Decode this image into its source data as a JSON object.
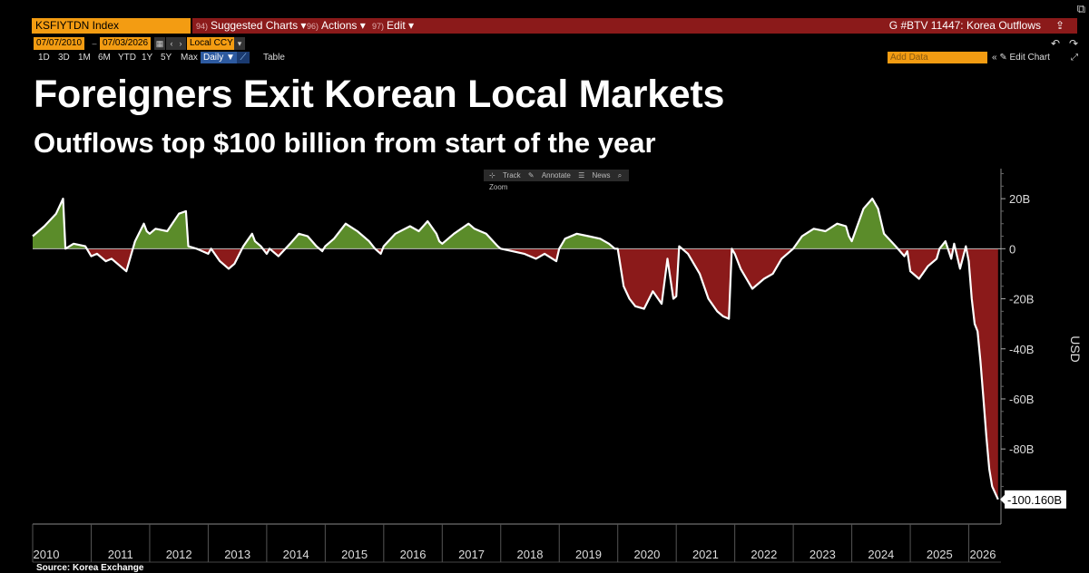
{
  "toolbar_top": {
    "ticker": "KSFIYTDN Index",
    "menu": [
      {
        "num": "94)",
        "label": "Suggested Charts ▾"
      },
      {
        "num": "96)",
        "label": "Actions ▾"
      },
      {
        "num": "97)",
        "label": "Edit ▾"
      }
    ],
    "window_title": "G #BTV 11447: Korea Outflows"
  },
  "date_range": {
    "start": "07/07/2010",
    "end": "07/03/2026",
    "currency": "Local CCY"
  },
  "periods": [
    "1D",
    "3D",
    "1M",
    "6M",
    "YTD",
    "1Y",
    "5Y",
    "Max"
  ],
  "frequency": "Daily ▼",
  "table_label": "Table",
  "add_data_placeholder": "Add Data",
  "edit_chart_label": "« ✎ Edit Chart",
  "chart_tools": [
    "Track",
    "Annotate",
    "News",
    "Zoom"
  ],
  "headline": "Foreigners Exit Korean Local Markets",
  "subheadline": "Outflows top $100 billion from start of the year",
  "source": "Source: Korea Exchange",
  "colors": {
    "background": "#000000",
    "positive_fill": "#5b8c2a",
    "negative_fill": "#8b1a1a",
    "line": "#ffffff",
    "accent": "#f39c12"
  },
  "chart_data": {
    "type": "area",
    "title": "Foreigners Exit Korean Local Markets",
    "subtitle": "Outflows top $100 billion from start of the year",
    "ylabel": "USD",
    "ylim": [
      -110,
      32
    ],
    "yticks": [
      20,
      0,
      -20,
      -40,
      -60,
      -80
    ],
    "ytick_labels": [
      "20B",
      "0",
      "-20B",
      "-40B",
      "-60B",
      "-80B"
    ],
    "x_tick_labels": [
      "2010",
      "2011",
      "2012",
      "2013",
      "2014",
      "2015",
      "2016",
      "2017",
      "2018",
      "2019",
      "2020",
      "2021",
      "2022",
      "2023",
      "2024",
      "2025",
      "2026"
    ],
    "last_value_label": "-100.160B",
    "grid": false,
    "series": [
      {
        "values_unit": "USD billions, year-to-date cumulative foreign net flow",
        "x": [
          2010.0,
          2010.2,
          2010.4,
          2010.52,
          2010.56,
          2010.7,
          2010.9,
          2011.0,
          2011.1,
          2011.25,
          2011.35,
          2011.5,
          2011.6,
          2011.75,
          2011.9,
          2011.95,
          2012.0,
          2012.1,
          2012.3,
          2012.5,
          2012.62,
          2012.66,
          2012.8,
          2013.0,
          2013.05,
          2013.2,
          2013.35,
          2013.45,
          2013.6,
          2013.75,
          2013.8,
          2013.9,
          2014.0,
          2014.05,
          2014.2,
          2014.4,
          2014.55,
          2014.7,
          2014.85,
          2014.95,
          2015.0,
          2015.15,
          2015.35,
          2015.55,
          2015.75,
          2015.85,
          2015.95,
          2016.0,
          2016.2,
          2016.45,
          2016.6,
          2016.75,
          2016.9,
          2016.95,
          2017.0,
          2017.2,
          2017.45,
          2017.55,
          2017.75,
          2017.95,
          2018.0,
          2018.2,
          2018.4,
          2018.6,
          2018.75,
          2018.95,
          2019.0,
          2019.1,
          2019.3,
          2019.5,
          2019.7,
          2019.85,
          2019.95,
          2020.0,
          2020.1,
          2020.2,
          2020.3,
          2020.45,
          2020.6,
          2020.75,
          2020.85,
          2020.95,
          2021.0,
          2021.05,
          2021.2,
          2021.4,
          2021.55,
          2021.7,
          2021.8,
          2021.9,
          2021.95,
          2022.0,
          2022.1,
          2022.3,
          2022.5,
          2022.65,
          2022.8,
          2022.95,
          2023.0,
          2023.15,
          2023.35,
          2023.55,
          2023.75,
          2023.9,
          2023.95,
          2024.0,
          2024.2,
          2024.35,
          2024.45,
          2024.55,
          2024.75,
          2024.9,
          2024.95,
          2025.0,
          2025.15,
          2025.3,
          2025.45,
          2025.5,
          2025.6,
          2025.7,
          2025.75,
          2025.85,
          2025.95,
          2026.0,
          2026.05,
          2026.1,
          2026.15,
          2026.2,
          2026.25,
          2026.3,
          2026.35,
          2026.4,
          2026.5
        ],
        "values": [
          5,
          9,
          14,
          20,
          0,
          2,
          1,
          -3,
          -2,
          -5,
          -4,
          -7,
          -9,
          3,
          10,
          7,
          6,
          8,
          7,
          14,
          15,
          1,
          0,
          -2,
          0,
          -5,
          -8,
          -6,
          1,
          6,
          3,
          1,
          -2,
          0,
          -3,
          2,
          6,
          5,
          1,
          -1,
          1,
          4,
          10,
          7,
          3,
          0,
          -2,
          1,
          6,
          9,
          7,
          11,
          6,
          3,
          2,
          6,
          10,
          8,
          6,
          1,
          0,
          -1,
          -2,
          -4,
          -2,
          -5,
          0,
          4,
          6,
          5,
          4,
          2,
          0,
          0,
          -15,
          -20,
          -23,
          -24,
          -17,
          -22,
          -4,
          -20,
          -19,
          1,
          -2,
          -10,
          -20,
          -25,
          -27,
          -28,
          0,
          -2,
          -8,
          -16,
          -12,
          -10,
          -4,
          -1,
          0,
          5,
          8,
          7,
          10,
          9,
          5,
          3,
          16,
          20,
          16,
          6,
          1,
          -3,
          -1,
          -9,
          -12,
          -7,
          -4,
          0,
          3,
          -4,
          2,
          -8,
          1,
          -5,
          -20,
          -30,
          -33,
          -45,
          -60,
          -75,
          -88,
          -95,
          -100.16
        ]
      }
    ]
  }
}
